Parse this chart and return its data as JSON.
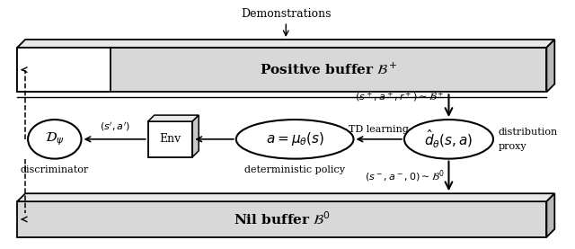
{
  "bg_color": "#ffffff",
  "title": "Demonstrations",
  "pos_buffer_label": "Positive buffer $\\mathcal{B}^+$",
  "nil_buffer_label": "Nil buffer $\\mathcal{B}^0$",
  "discriminator_label": "$\\mathcal{D}_\\psi$",
  "policy_label": "$a = \\mu_\\theta(s)$",
  "d_theta_label": "$\\hat{d}_\\theta(s, a)$",
  "env_label": "Env",
  "label_discriminator": "discriminator",
  "label_det_policy": "deterministic policy",
  "label_td": "TD learning",
  "label_dist_proxy1": "distribution",
  "label_dist_proxy2": "proxy",
  "label_s_prime": "$(s^\\prime, a^\\prime)$",
  "label_pos_sample": "$(s^+, a^+, r^+) \\sim \\mathcal{B}^+$",
  "label_neg_sample": "$(s^-, a^-, 0) \\sim \\mathcal{B}^0$"
}
